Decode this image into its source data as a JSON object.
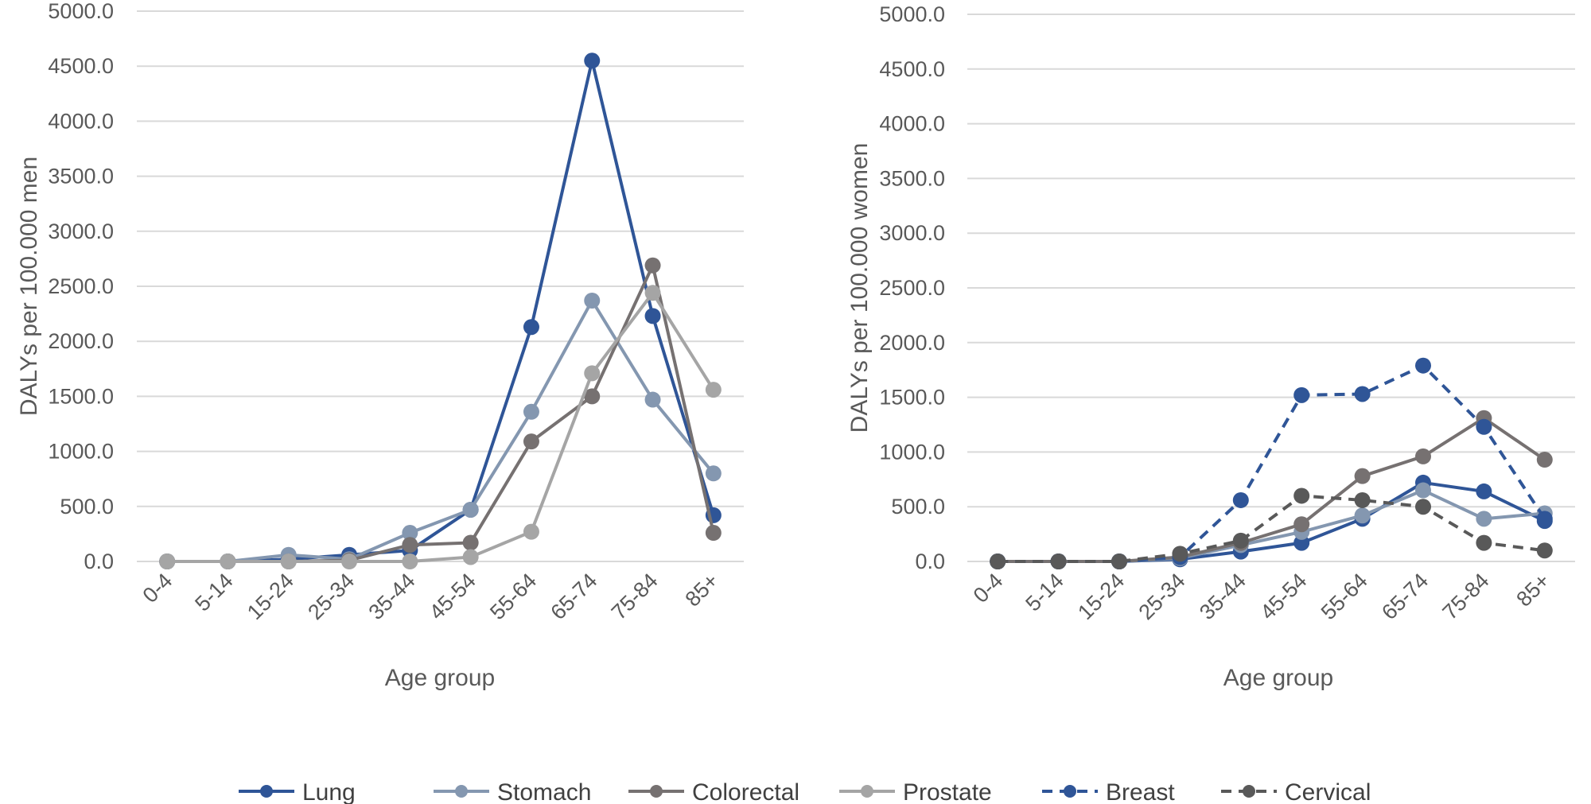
{
  "chart_data": [
    {
      "type": "line",
      "title": "",
      "xlabel": "Age group",
      "ylabel": "DALYs per 100.000 men",
      "ylim": [
        0,
        5000
      ],
      "yticks": [
        "0.0",
        "500.0",
        "1000.0",
        "1500.0",
        "2000.0",
        "2500.0",
        "3000.0",
        "3500.0",
        "4000.0",
        "4500.0",
        "5000.0"
      ],
      "categories": [
        "0-4",
        "5-14",
        "15-24",
        "25-34",
        "35-44",
        "45-54",
        "55-64",
        "65-74",
        "75-84",
        "85+"
      ],
      "series": [
        {
          "name": "Lung",
          "values": [
            0,
            0,
            20,
            60,
            100,
            470,
            2130,
            4550,
            2230,
            420
          ]
        },
        {
          "name": "Stomach",
          "values": [
            0,
            0,
            60,
            20,
            260,
            470,
            1360,
            2370,
            1470,
            800
          ]
        },
        {
          "name": "Colorectal",
          "values": [
            0,
            0,
            0,
            10,
            150,
            170,
            1090,
            1500,
            2690,
            260
          ]
        },
        {
          "name": "Prostate",
          "values": [
            0,
            0,
            0,
            0,
            0,
            40,
            270,
            1710,
            2440,
            1560
          ]
        }
      ]
    },
    {
      "type": "line",
      "title": "",
      "xlabel": "Age group",
      "ylabel": "DALYs per 100.000 women",
      "ylim": [
        0,
        5000
      ],
      "yticks": [
        "0.0",
        "500.0",
        "1000.0",
        "1500.0",
        "2000.0",
        "2500.0",
        "3000.0",
        "3500.0",
        "4000.0",
        "4500.0",
        "5000.0"
      ],
      "categories": [
        "0-4",
        "5-14",
        "15-24",
        "25-34",
        "35-44",
        "45-54",
        "55-64",
        "65-74",
        "75-84",
        "85+"
      ],
      "series": [
        {
          "name": "Lung",
          "values": [
            0,
            0,
            0,
            20,
            90,
            170,
            390,
            720,
            640,
            370
          ]
        },
        {
          "name": "Stomach",
          "values": [
            0,
            0,
            0,
            30,
            150,
            270,
            420,
            650,
            390,
            440
          ]
        },
        {
          "name": "Colorectal",
          "values": [
            0,
            0,
            0,
            40,
            170,
            340,
            780,
            960,
            1310,
            930
          ]
        },
        {
          "name": "Breast",
          "values": [
            0,
            0,
            0,
            40,
            560,
            1520,
            1530,
            1790,
            1230,
            390
          ]
        },
        {
          "name": "Cervical",
          "values": [
            0,
            0,
            0,
            70,
            190,
            600,
            560,
            500,
            170,
            100
          ]
        }
      ]
    }
  ],
  "legend": {
    "position": "bottom",
    "items": [
      {
        "name": "Lung",
        "color": "#2F5597",
        "dashed": false
      },
      {
        "name": "Stomach",
        "color": "#8497B0",
        "dashed": false
      },
      {
        "name": "Colorectal",
        "color": "#767171",
        "dashed": false
      },
      {
        "name": "Prostate",
        "color": "#A5A5A5",
        "dashed": false
      },
      {
        "name": "Breast",
        "color": "#2F5597",
        "dashed": true
      },
      {
        "name": "Cervical",
        "color": "#595959",
        "dashed": true
      }
    ]
  }
}
